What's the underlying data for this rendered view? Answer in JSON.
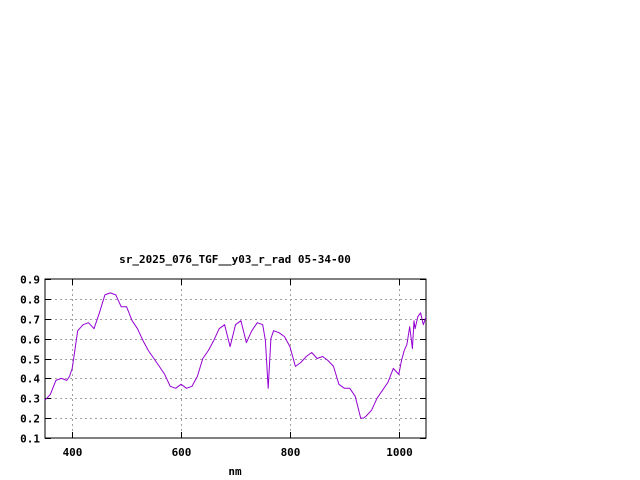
{
  "chart_data": {
    "type": "line",
    "title": "sr_2025_076_TGF__y03_r_rad 05-34-00",
    "xlabel": "nm",
    "ylabel": "",
    "xlim": [
      350,
      1050
    ],
    "ylim": [
      0.1,
      0.9
    ],
    "x_ticks": [
      400,
      600,
      800,
      1000
    ],
    "y_ticks": [
      0.1,
      0.2,
      0.3,
      0.4,
      0.5,
      0.6,
      0.7,
      0.8,
      0.9
    ],
    "grid": true,
    "legend": "none",
    "series": [
      {
        "color": "#9400d3",
        "x": [
          350,
          360,
          370,
          380,
          390,
          395,
          400,
          410,
          420,
          430,
          440,
          450,
          460,
          470,
          480,
          490,
          500,
          510,
          520,
          530,
          540,
          550,
          560,
          570,
          580,
          590,
          600,
          610,
          620,
          630,
          640,
          650,
          660,
          670,
          680,
          690,
          700,
          710,
          720,
          730,
          740,
          750,
          755,
          760,
          765,
          770,
          780,
          790,
          800,
          810,
          820,
          830,
          840,
          850,
          860,
          870,
          880,
          890,
          900,
          910,
          920,
          930,
          935,
          940,
          950,
          960,
          970,
          980,
          990,
          1000,
          1005,
          1010,
          1015,
          1020,
          1025,
          1028,
          1030,
          1035,
          1040,
          1045,
          1050
        ],
        "values": [
          0.29,
          0.32,
          0.39,
          0.4,
          0.39,
          0.41,
          0.45,
          0.64,
          0.67,
          0.68,
          0.65,
          0.73,
          0.82,
          0.83,
          0.82,
          0.76,
          0.76,
          0.69,
          0.65,
          0.59,
          0.54,
          0.5,
          0.46,
          0.42,
          0.36,
          0.35,
          0.37,
          0.35,
          0.36,
          0.41,
          0.5,
          0.54,
          0.59,
          0.65,
          0.67,
          0.56,
          0.67,
          0.69,
          0.58,
          0.64,
          0.68,
          0.67,
          0.59,
          0.35,
          0.6,
          0.64,
          0.63,
          0.61,
          0.56,
          0.46,
          0.48,
          0.51,
          0.53,
          0.5,
          0.51,
          0.49,
          0.46,
          0.37,
          0.35,
          0.35,
          0.31,
          0.2,
          0.2,
          0.21,
          0.24,
          0.3,
          0.34,
          0.38,
          0.45,
          0.42,
          0.49,
          0.54,
          0.57,
          0.66,
          0.55,
          0.69,
          0.65,
          0.71,
          0.73,
          0.67,
          0.71
        ]
      }
    ]
  }
}
